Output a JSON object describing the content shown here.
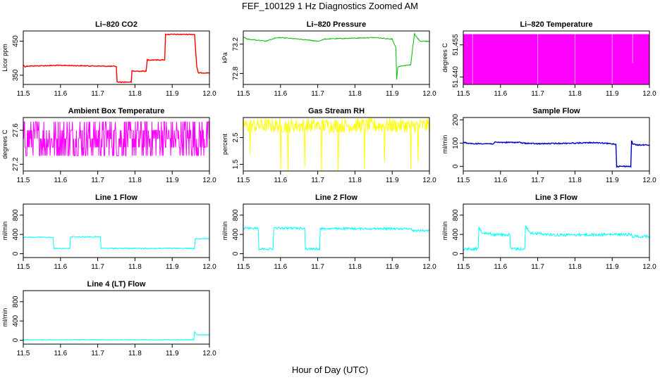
{
  "figure": {
    "title": "FEF_100129  1 Hz Diagnostics Zoomed AM",
    "xlabel": "Hour of Day (UTC)"
  },
  "chart_data": [
    {
      "id": "co2",
      "type": "line",
      "title": "Li–820 CO2",
      "xlabel": "",
      "ylabel": "Licor ppm",
      "color": "#ff0000",
      "xlim": [
        11.5,
        12.0
      ],
      "ylim": [
        323,
        480
      ],
      "yticks": [
        350,
        450
      ],
      "xticks": [
        11.5,
        11.6,
        11.7,
        11.8,
        11.9,
        12.0
      ],
      "x": [
        11.5,
        11.505,
        11.51,
        11.6,
        11.75,
        11.752,
        11.79,
        11.792,
        11.83,
        11.833,
        11.88,
        11.882,
        11.96,
        11.966,
        11.97,
        12.0
      ],
      "y": [
        380,
        375,
        377,
        379,
        376,
        330,
        330,
        362,
        362,
        395,
        395,
        470,
        470,
        375,
        357,
        357
      ]
    },
    {
      "id": "pressure",
      "type": "line",
      "title": "Li–820 Pressure",
      "xlabel": "",
      "ylabel": "kPa",
      "color": "#00bb00",
      "xlim": [
        11.5,
        12.0
      ],
      "ylim": [
        72.65,
        73.38
      ],
      "yticks": [
        72.8,
        73.2
      ],
      "xticks": [
        11.5,
        11.6,
        11.7,
        11.8,
        11.9,
        12.0
      ],
      "x": [
        11.5,
        11.51,
        11.56,
        11.585,
        11.6,
        11.65,
        11.7,
        11.72,
        11.85,
        11.9,
        11.91,
        11.912,
        11.915,
        11.92,
        11.95,
        11.955,
        11.96,
        11.965,
        11.975,
        12.0
      ],
      "y": [
        73.3,
        73.27,
        73.24,
        73.28,
        73.29,
        73.27,
        73.24,
        73.27,
        73.29,
        73.27,
        73.15,
        72.72,
        72.88,
        72.9,
        72.92,
        73.15,
        73.34,
        73.3,
        73.24,
        73.24
      ]
    },
    {
      "id": "temperature",
      "type": "area",
      "title": "Li–820 Temperature",
      "xlabel": "",
      "ylabel": "degrees C",
      "color": "#ff00ff",
      "xlim": [
        11.5,
        12.0
      ],
      "ylim": [
        51.4365,
        51.4615
      ],
      "yticks": [
        51.44,
        51.455
      ],
      "ytick_labels": [
        "51.440",
        "51.455"
      ],
      "xticks": [
        11.5,
        11.6,
        11.7,
        11.8,
        11.9,
        12.0
      ],
      "x": [
        11.5,
        12.0
      ],
      "y": [
        51.44,
        51.46
      ]
    },
    {
      "id": "box-temp",
      "type": "line",
      "title": "Ambient Box Temperature",
      "xlabel": "",
      "ylabel": "degrees C",
      "color": "#ff00ff",
      "xlim": [
        11.5,
        12.0
      ],
      "ylim": [
        27.12,
        27.75
      ],
      "yticks": [
        27.2,
        27.6
      ],
      "xticks": [
        11.5,
        11.6,
        11.7,
        11.8,
        11.9,
        12.0
      ],
      "x": [
        11.5,
        11.6,
        11.7,
        11.8,
        11.9,
        12.0
      ],
      "y": [
        27.5,
        27.55,
        27.5,
        27.55,
        27.5,
        27.55
      ]
    },
    {
      "id": "rh",
      "type": "line",
      "title": "Gas Stream RH",
      "xlabel": "",
      "ylabel": "percent",
      "color": "#ffff00",
      "xlim": [
        11.5,
        12.0
      ],
      "ylim": [
        1.25,
        3.25
      ],
      "yticks": [
        1.5,
        2.5
      ],
      "xticks": [
        11.5,
        11.6,
        11.7,
        11.8,
        11.9,
        12.0
      ],
      "x": [
        11.5,
        11.6,
        11.7,
        11.8,
        11.9,
        12.0
      ],
      "y": [
        2.95,
        2.95,
        2.95,
        2.95,
        2.95,
        2.95
      ]
    },
    {
      "id": "sample-flow",
      "type": "line",
      "title": "Sample Flow",
      "xlabel": "",
      "ylabel": "ml/min",
      "color": "#0000cc",
      "xlim": [
        11.5,
        12.0
      ],
      "ylim": [
        -20,
        210
      ],
      "yticks": [
        0,
        100,
        200
      ],
      "xticks": [
        11.5,
        11.6,
        11.7,
        11.8,
        11.9,
        12.0
      ],
      "x": [
        11.5,
        11.505,
        11.52,
        11.55,
        11.58,
        11.585,
        11.65,
        11.66,
        11.7,
        11.8,
        11.85,
        11.9,
        11.91,
        11.912,
        11.95,
        11.952,
        11.955,
        11.965,
        12.0
      ],
      "y": [
        105,
        102,
        97,
        98,
        97,
        103,
        103,
        100,
        97,
        100,
        102,
        97,
        95,
        0,
        0,
        110,
        97,
        92,
        92
      ]
    },
    {
      "id": "line1",
      "type": "line",
      "title": "Line 1 Flow",
      "xlabel": "",
      "ylabel": "ml/min",
      "color": "#00ffff",
      "xlim": [
        11.5,
        12.0
      ],
      "ylim": [
        -80,
        1030
      ],
      "yticks": [
        0,
        400,
        800
      ],
      "xticks": [
        11.5,
        11.6,
        11.7,
        11.8,
        11.9,
        12.0
      ],
      "x": [
        11.5,
        11.58,
        11.582,
        11.625,
        11.627,
        11.707,
        11.709,
        11.72,
        11.96,
        11.962,
        12.0
      ],
      "y": [
        340,
        340,
        110,
        110,
        350,
        350,
        110,
        110,
        110,
        310,
        310
      ]
    },
    {
      "id": "line2",
      "type": "line",
      "title": "Line 2 Flow",
      "xlabel": "",
      "ylabel": "ml/min",
      "color": "#00ffff",
      "xlim": [
        11.5,
        12.0
      ],
      "ylim": [
        -80,
        1030
      ],
      "yticks": [
        0,
        400,
        800
      ],
      "xticks": [
        11.5,
        11.6,
        11.7,
        11.8,
        11.9,
        12.0
      ],
      "x": [
        11.5,
        11.54,
        11.542,
        11.58,
        11.582,
        11.665,
        11.667,
        11.705,
        11.707,
        11.95,
        11.955,
        12.0
      ],
      "y": [
        530,
        530,
        100,
        100,
        530,
        530,
        100,
        100,
        520,
        520,
        480,
        480
      ]
    },
    {
      "id": "line3",
      "type": "line",
      "title": "Line 3 Flow",
      "xlabel": "",
      "ylabel": "ml/min",
      "color": "#00ffff",
      "xlim": [
        11.5,
        12.0
      ],
      "ylim": [
        -80,
        1030
      ],
      "yticks": [
        0,
        400,
        800
      ],
      "xticks": [
        11.5,
        11.6,
        11.7,
        11.8,
        11.9,
        12.0
      ],
      "x": [
        11.5,
        11.54,
        11.542,
        11.55,
        11.58,
        11.625,
        11.627,
        11.665,
        11.667,
        11.68,
        11.75,
        11.95,
        11.955,
        12.0
      ],
      "y": [
        100,
        100,
        560,
        450,
        400,
        390,
        100,
        100,
        570,
        430,
        390,
        400,
        360,
        360
      ]
    },
    {
      "id": "line4",
      "type": "line",
      "title": "Line 4 (LT) Flow",
      "xlabel": "",
      "ylabel": "ml/min",
      "color": "#00ffff",
      "xlim": [
        11.5,
        12.0
      ],
      "ylim": [
        -80,
        1030
      ],
      "yticks": [
        0,
        400,
        800
      ],
      "xticks": [
        11.5,
        11.6,
        11.7,
        11.8,
        11.9,
        12.0
      ],
      "x": [
        11.5,
        11.95,
        11.958,
        11.96,
        11.965,
        11.97,
        12.0
      ],
      "y": [
        10,
        10,
        10,
        170,
        120,
        110,
        110
      ]
    }
  ]
}
